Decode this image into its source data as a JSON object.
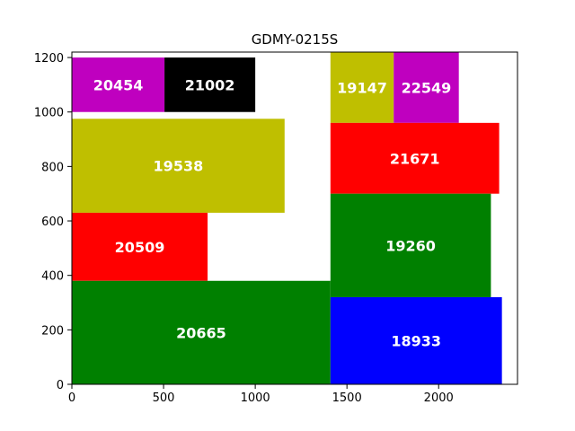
{
  "chart_data": {
    "type": "bar",
    "title": "GDMY-0215S",
    "xlabel": "",
    "ylabel": "",
    "xlim": [
      0,
      2430
    ],
    "ylim": [
      0,
      1220
    ],
    "xticks": [
      0,
      500,
      1000,
      1500,
      2000
    ],
    "yticks": [
      0,
      200,
      400,
      600,
      800,
      1000,
      1200
    ],
    "grid": false,
    "rectangles": [
      {
        "label": "20454",
        "x": 0,
        "y": 1000,
        "width": 505,
        "height": 200,
        "color": "#bf00bf"
      },
      {
        "label": "21002",
        "x": 505,
        "y": 1000,
        "width": 495,
        "height": 200,
        "color": "#000000"
      },
      {
        "label": "19538",
        "x": 0,
        "y": 630,
        "width": 1160,
        "height": 345,
        "color": "#bfbf00"
      },
      {
        "label": "20509",
        "x": 0,
        "y": 380,
        "width": 740,
        "height": 250,
        "color": "#ff0000"
      },
      {
        "label": "20665",
        "x": 0,
        "y": 0,
        "width": 1410,
        "height": 380,
        "color": "#008000"
      },
      {
        "label": "19147",
        "x": 1410,
        "y": 960,
        "width": 345,
        "height": 260,
        "color": "#bfbf00"
      },
      {
        "label": "22549",
        "x": 1755,
        "y": 960,
        "width": 355,
        "height": 260,
        "color": "#bf00bf"
      },
      {
        "label": "21671",
        "x": 1410,
        "y": 700,
        "width": 920,
        "height": 260,
        "color": "#ff0000"
      },
      {
        "label": "19260",
        "x": 1410,
        "y": 320,
        "width": 875,
        "height": 380,
        "color": "#008000"
      },
      {
        "label": "18933",
        "x": 1410,
        "y": 0,
        "width": 935,
        "height": 320,
        "color": "#0000ff"
      }
    ]
  }
}
